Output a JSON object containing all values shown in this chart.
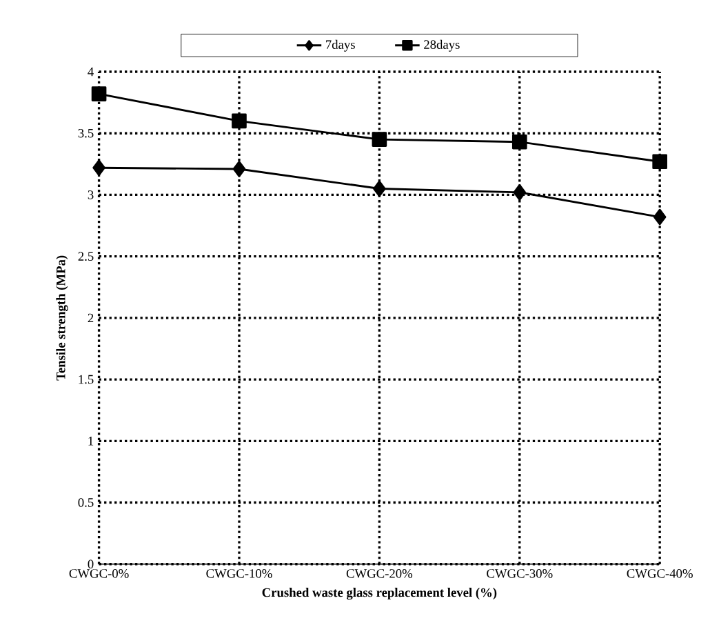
{
  "chart_data": {
    "type": "line",
    "xlabel": "Crushed waste glass replacement level (%)",
    "ylabel": "Tensile strength (MPa)",
    "categories": [
      "CWGC-0%",
      "CWGC-10%",
      "CWGC-20%",
      "CWGC-30%",
      "CWGC-40%"
    ],
    "series": [
      {
        "name": "7days",
        "color": "#000000",
        "marker": "diamond",
        "values": [
          3.22,
          3.21,
          3.05,
          3.02,
          2.82
        ]
      },
      {
        "name": "28days",
        "color": "#000000",
        "marker": "square",
        "values": [
          3.82,
          3.6,
          3.45,
          3.43,
          3.27
        ]
      }
    ],
    "ylim": [
      0,
      4
    ],
    "yticks": [
      0,
      0.5,
      1,
      1.5,
      2,
      2.5,
      3,
      3.5,
      4
    ],
    "grid": true,
    "legend": "top",
    "line_style": "solid"
  }
}
